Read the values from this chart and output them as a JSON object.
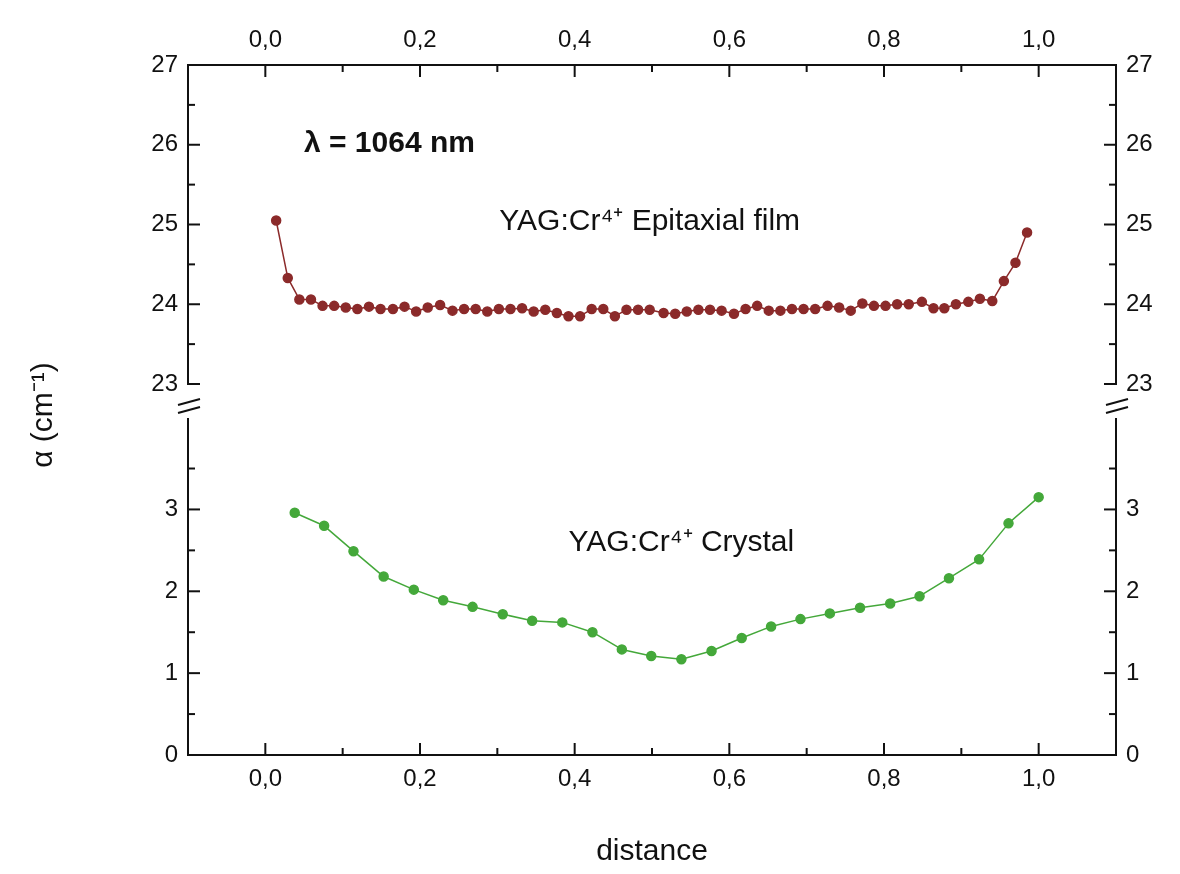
{
  "chart_data": [
    {
      "type": "line",
      "annotations": [
        "λ = 1064 nm"
      ],
      "xlim": [
        -0.1,
        1.1
      ],
      "x2lim": [
        -0.1,
        1.1
      ],
      "x2ticks": [
        {
          "value": 0,
          "label": "0,0"
        },
        {
          "value": 0.1,
          "label": null
        },
        {
          "value": 0.2,
          "label": "0,2"
        },
        {
          "value": 0.3,
          "label": null
        },
        {
          "value": 0.4,
          "label": "0,4"
        },
        {
          "value": 0.5,
          "label": null
        },
        {
          "value": 0.6,
          "label": "0,6"
        },
        {
          "value": 0.7,
          "label": null
        },
        {
          "value": 0.8,
          "label": "0,8"
        },
        {
          "value": 0.9,
          "label": null
        },
        {
          "value": 1,
          "label": "1,0"
        }
      ],
      "ylim": [
        23,
        27
      ],
      "yticks": [
        23,
        {
          "value": 23.5,
          "label": null
        },
        24,
        {
          "value": 24.5,
          "label": null
        },
        25,
        {
          "value": 25.5,
          "label": null
        },
        26,
        {
          "value": 26.5,
          "label": null
        },
        27
      ],
      "y2lim": [
        23,
        27
      ],
      "y2ticks": [
        23,
        {
          "value": 23.5,
          "label": null
        },
        24,
        {
          "value": 24.5,
          "label": null
        },
        25,
        {
          "value": 25.5,
          "label": null
        },
        26,
        {
          "value": 26.5,
          "label": null
        },
        27
      ],
      "tick_labels": "y",
      "marker": "circle",
      "series": [
        {
          "name": "YAG:Cr⁴⁺ Epitaxial film",
          "color": "#8b2a2a",
          "x": [
            0.014,
            0.029,
            0.044,
            0.059,
            0.074,
            0.089,
            0.104,
            0.119,
            0.134,
            0.149,
            0.165,
            0.18,
            0.195,
            0.21,
            0.226,
            0.242,
            0.257,
            0.272,
            0.287,
            0.302,
            0.317,
            0.332,
            0.347,
            0.362,
            0.377,
            0.392,
            0.407,
            0.422,
            0.437,
            0.452,
            0.467,
            0.482,
            0.497,
            0.515,
            0.53,
            0.545,
            0.56,
            0.575,
            0.59,
            0.606,
            0.621,
            0.636,
            0.651,
            0.666,
            0.681,
            0.696,
            0.711,
            0.727,
            0.742,
            0.757,
            0.772,
            0.787,
            0.802,
            0.817,
            0.832,
            0.849,
            0.864,
            0.878,
            0.893,
            0.909,
            0.924,
            0.94,
            0.955,
            0.97,
            0.985
          ],
          "values": [
            25.05,
            24.33,
            24.06,
            24.06,
            23.98,
            23.98,
            23.96,
            23.94,
            23.97,
            23.94,
            23.94,
            23.97,
            23.91,
            23.96,
            23.99,
            23.92,
            23.94,
            23.94,
            23.91,
            23.94,
            23.94,
            23.95,
            23.91,
            23.93,
            23.89,
            23.85,
            23.85,
            23.94,
            23.94,
            23.85,
            23.93,
            23.93,
            23.93,
            23.89,
            23.88,
            23.91,
            23.93,
            23.93,
            23.92,
            23.88,
            23.94,
            23.98,
            23.92,
            23.92,
            23.94,
            23.94,
            23.94,
            23.98,
            23.96,
            23.92,
            24.01,
            23.98,
            23.98,
            24.0,
            24.0,
            24.03,
            23.95,
            23.95,
            24.0,
            24.03,
            24.07,
            24.04,
            24.29,
            24.52,
            24.9
          ]
        }
      ]
    },
    {
      "type": "line",
      "xlabel": "distance",
      "ylabel": "α (cm⁻¹)",
      "xlim": [
        -0.1,
        1.1
      ],
      "xticks": [
        {
          "value": 0,
          "label": "0,0"
        },
        {
          "value": 0.1,
          "label": null
        },
        {
          "value": 0.2,
          "label": "0,2"
        },
        {
          "value": 0.3,
          "label": null
        },
        {
          "value": 0.4,
          "label": "0,4"
        },
        {
          "value": 0.5,
          "label": null
        },
        {
          "value": 0.6,
          "label": "0,6"
        },
        {
          "value": 0.7,
          "label": null
        },
        {
          "value": 0.8,
          "label": "0,8"
        },
        {
          "value": 0.9,
          "label": null
        },
        {
          "value": 1,
          "label": "1,0"
        }
      ],
      "ylim": [
        0,
        4.1
      ],
      "yticks": [
        0,
        {
          "value": 0.5,
          "label": null
        },
        1,
        {
          "value": 1.5,
          "label": null
        },
        2,
        {
          "value": 2.5,
          "label": null
        },
        3,
        {
          "value": 3.5,
          "label": null
        }
      ],
      "y2lim": [
        0,
        4.1
      ],
      "y2ticks": [
        0,
        {
          "value": 0.5,
          "label": null
        },
        1,
        {
          "value": 1.5,
          "label": null
        },
        2,
        {
          "value": 2.5,
          "label": null
        },
        3,
        {
          "value": 3.5,
          "label": null
        }
      ],
      "marker": "circle",
      "series": [
        {
          "name": "YAG:Cr⁴⁺ Crystal",
          "color": "#44a83a",
          "x": [
            0.038,
            0.076,
            0.114,
            0.153,
            0.192,
            0.23,
            0.268,
            0.307,
            0.345,
            0.384,
            0.423,
            0.461,
            0.499,
            0.538,
            0.577,
            0.616,
            0.654,
            0.692,
            0.73,
            0.769,
            0.808,
            0.846,
            0.884,
            0.923,
            0.961,
            1.0
          ],
          "values": [
            2.96,
            2.8,
            2.49,
            2.18,
            2.02,
            1.89,
            1.81,
            1.72,
            1.64,
            1.62,
            1.5,
            1.29,
            1.21,
            1.17,
            1.27,
            1.43,
            1.57,
            1.66,
            1.73,
            1.8,
            1.85,
            1.94,
            2.16,
            2.39,
            2.83,
            3.15
          ]
        }
      ]
    }
  ]
}
